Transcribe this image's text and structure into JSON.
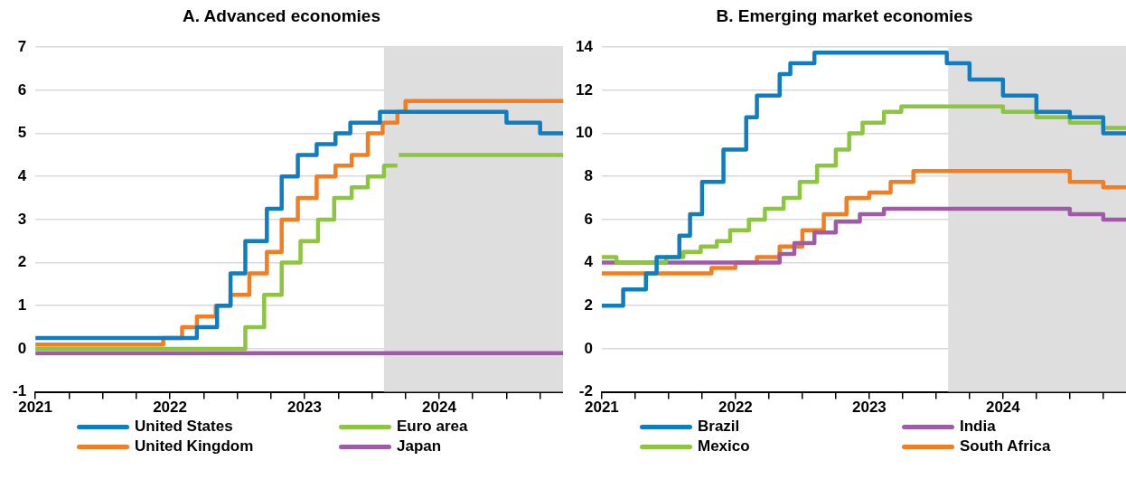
{
  "chart_data": [
    {
      "type": "step",
      "title": "A. Advanced economies",
      "xlim": [
        2021,
        2024.92
      ],
      "ylim": [
        -1,
        7
      ],
      "xticks": [
        2021,
        {
          "value": 2021.25,
          "label": null
        },
        {
          "value": 2021.5,
          "label": null
        },
        {
          "value": 2021.75,
          "label": null
        },
        2022,
        {
          "value": 2022.25,
          "label": null
        },
        {
          "value": 2022.5,
          "label": null
        },
        {
          "value": 2022.75,
          "label": null
        },
        2023,
        {
          "value": 2023.25,
          "label": null
        },
        {
          "value": 2023.5,
          "label": null
        },
        {
          "value": 2023.75,
          "label": null
        },
        2024,
        {
          "value": 2024.25,
          "label": null
        },
        {
          "value": 2024.5,
          "label": null
        },
        {
          "value": 2024.75,
          "label": null
        }
      ],
      "yticks": [
        -1,
        0,
        1,
        2,
        3,
        4,
        5,
        6,
        7
      ],
      "grid": "y",
      "legend": "bottom",
      "bands": [
        {
          "axis": "x",
          "from": 2023.59,
          "to": 2024.92,
          "color": "#dedede"
        }
      ],
      "series": [
        {
          "name": "United States",
          "color": "#0f7dc2",
          "x": [
            2021,
            2022.2,
            2022.35,
            2022.45,
            2022.56,
            2022.72,
            2022.83,
            2022.95,
            2023.09,
            2023.23,
            2023.34,
            2023.56,
            2024.5,
            2024.75,
            2024.92
          ],
          "values": [
            0.25,
            0.5,
            1.0,
            1.75,
            2.5,
            3.25,
            4.0,
            4.5,
            4.75,
            5.0,
            5.25,
            5.5,
            5.25,
            5.0,
            5.0
          ]
        },
        {
          "name": "United Kingdom",
          "color": "#f47d20",
          "x": [
            2021,
            2021.95,
            2022.09,
            2022.2,
            2022.34,
            2022.45,
            2022.59,
            2022.72,
            2022.83,
            2022.95,
            2023.09,
            2023.23,
            2023.35,
            2023.47,
            2023.58,
            2023.69,
            2023.75,
            2024.92
          ],
          "values": [
            0.1,
            0.25,
            0.5,
            0.75,
            1.0,
            1.25,
            1.75,
            2.25,
            3.0,
            3.5,
            4.0,
            4.25,
            4.5,
            5.0,
            5.25,
            5.5,
            5.75,
            5.75
          ]
        },
        {
          "name": "Euro area",
          "color": "#8cc63f",
          "x": [
            2021,
            2022.56,
            2022.7,
            2022.83,
            2022.97,
            2023.1,
            2023.22,
            2023.35,
            2023.47,
            2023.59,
            2023.69,
            2023.695,
            2023.7,
            2024.92
          ],
          "values": [
            0,
            0.5,
            1.25,
            2.0,
            2.5,
            3.0,
            3.5,
            3.75,
            4.0,
            4.25,
            4.25,
            null,
            4.5,
            4.5
          ]
        },
        {
          "name": "Japan",
          "color": "#a05aa8",
          "x": [
            2021,
            2024.92
          ],
          "values": [
            -0.1,
            -0.1
          ]
        }
      ]
    },
    {
      "type": "step",
      "title": "B. Emerging market economies",
      "xlim": [
        2021,
        2024.92
      ],
      "ylim": [
        -2,
        14
      ],
      "xticks": [
        2021,
        {
          "value": 2021.25,
          "label": null
        },
        {
          "value": 2021.5,
          "label": null
        },
        {
          "value": 2021.75,
          "label": null
        },
        2022,
        {
          "value": 2022.25,
          "label": null
        },
        {
          "value": 2022.5,
          "label": null
        },
        {
          "value": 2022.75,
          "label": null
        },
        2023,
        {
          "value": 2023.25,
          "label": null
        },
        {
          "value": 2023.5,
          "label": null
        },
        {
          "value": 2023.75,
          "label": null
        },
        2024,
        {
          "value": 2024.25,
          "label": null
        },
        {
          "value": 2024.5,
          "label": null
        },
        {
          "value": 2024.75,
          "label": null
        }
      ],
      "yticks": [
        -2,
        0,
        2,
        4,
        6,
        8,
        10,
        12,
        14
      ],
      "grid": "y",
      "legend": "bottom",
      "bands": [
        {
          "axis": "x",
          "from": 2023.59,
          "to": 2024.92,
          "color": "#dedede"
        }
      ],
      "series": [
        {
          "name": "Brazil",
          "color": "#0f7dc2",
          "x": [
            2021,
            2021.16,
            2021.33,
            2021.41,
            2021.58,
            2021.66,
            2021.75,
            2021.91,
            2022.08,
            2022.16,
            2022.33,
            2022.41,
            2022.59,
            2023.58,
            2023.75,
            2024.0,
            2024.25,
            2024.5,
            2024.75,
            2024.92
          ],
          "values": [
            2.0,
            2.75,
            3.5,
            4.25,
            5.25,
            6.25,
            7.75,
            9.25,
            10.75,
            11.75,
            12.75,
            13.25,
            13.75,
            13.25,
            12.5,
            11.75,
            11.0,
            10.75,
            10.0,
            10.0
          ]
        },
        {
          "name": "Mexico",
          "color": "#8cc63f",
          "x": [
            2021,
            2021.11,
            2021.48,
            2021.61,
            2021.74,
            2021.86,
            2021.96,
            2022.1,
            2022.22,
            2022.36,
            2022.48,
            2022.61,
            2022.75,
            2022.85,
            2022.95,
            2023.11,
            2023.24,
            2024.0,
            2024.25,
            2024.5,
            2024.75,
            2024.92
          ],
          "values": [
            4.25,
            4.0,
            4.25,
            4.5,
            4.75,
            5.0,
            5.5,
            6.0,
            6.5,
            7.0,
            7.75,
            8.5,
            9.25,
            10.0,
            10.5,
            11.0,
            11.25,
            11.0,
            10.75,
            10.5,
            10.25,
            10.25
          ]
        },
        {
          "name": "India",
          "color": "#a05aa8",
          "x": [
            2021,
            2022.33,
            2022.44,
            2022.59,
            2022.75,
            2022.93,
            2023.11,
            2024.5,
            2024.75,
            2024.92
          ],
          "values": [
            4.0,
            4.4,
            4.9,
            5.4,
            5.9,
            6.25,
            6.5,
            6.25,
            6.0,
            6.0
          ]
        },
        {
          "name": "South Africa",
          "color": "#f47d20",
          "x": [
            2021,
            2021.82,
            2022.0,
            2022.16,
            2022.33,
            2022.5,
            2022.66,
            2022.83,
            2023.0,
            2023.16,
            2023.33,
            2024.5,
            2024.75,
            2024.92
          ],
          "values": [
            3.5,
            3.75,
            4.0,
            4.25,
            4.75,
            5.5,
            6.25,
            7.0,
            7.25,
            7.75,
            8.25,
            7.75,
            7.5,
            7.5
          ]
        }
      ]
    }
  ]
}
